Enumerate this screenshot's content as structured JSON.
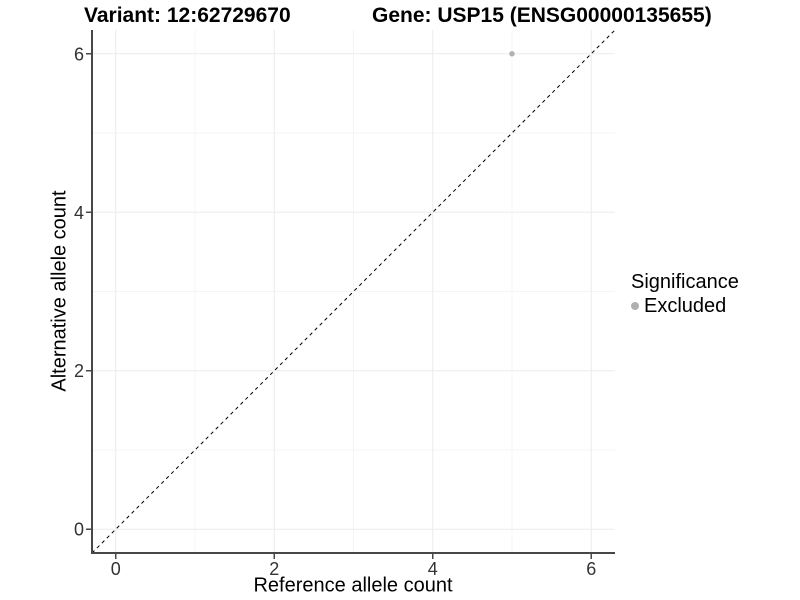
{
  "titles": {
    "variant": "Variant: 12:62729670",
    "gene": "Gene: USP15 (ENSG00000135655)"
  },
  "legend": {
    "title": "Significance",
    "items": [
      {
        "label": "Excluded",
        "color": "#b0b0b0"
      }
    ]
  },
  "colors": {
    "grid_major": "#ebebeb",
    "grid_minor": "#f4f4f4",
    "axis_line": "#474747",
    "tick_label": "#333333",
    "reference_line": "#000000"
  },
  "chart_data": {
    "type": "scatter",
    "title": "Variant: 12:62729670 — Gene: USP15 (ENSG00000135655)",
    "xlabel": "Reference allele count",
    "ylabel": "Alternative allele count",
    "xlim": [
      -0.3,
      6.3
    ],
    "ylim": [
      -0.3,
      6.3
    ],
    "xticks": [
      0,
      2,
      4,
      6
    ],
    "yticks": [
      0,
      2,
      4,
      6
    ],
    "minor_ticks": [
      1,
      3,
      5
    ],
    "grid": true,
    "legend_position": "right",
    "series": [
      {
        "name": "Excluded",
        "color": "#b0b0b0",
        "points": [
          {
            "x": 5,
            "y": 6
          }
        ]
      }
    ],
    "reference_line": {
      "type": "identity",
      "equation": "y = x",
      "style": "dashed",
      "color": "#000000"
    }
  }
}
